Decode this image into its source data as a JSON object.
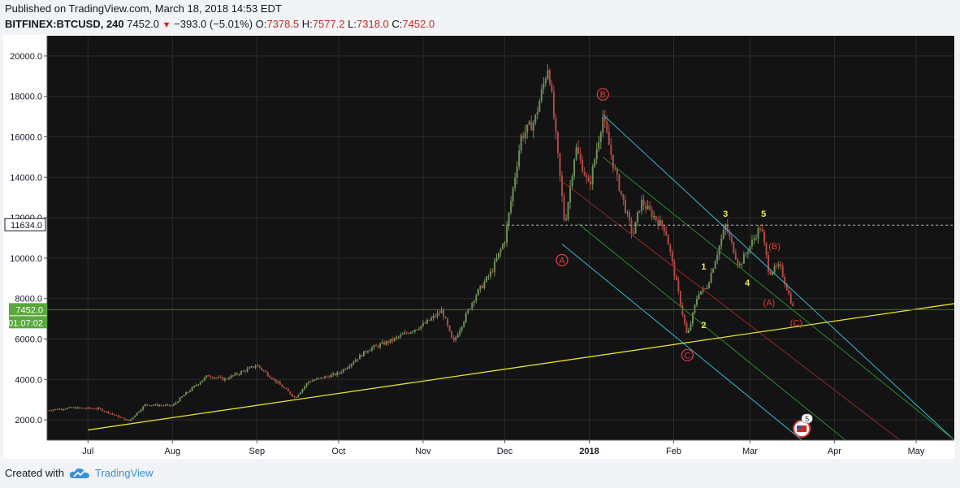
{
  "header": {
    "published": "Published on TradingView.com, March 18, 2018 14:53 EDT",
    "symbol": "BITFINEX:BTCUSD, 240",
    "last": "7452.0",
    "change": "−393.0 (−5.01%)",
    "o_label": "O:",
    "o": "7378.5",
    "h_label": "H:",
    "h": "7577.2",
    "l_label": "L:",
    "l": "7318.0",
    "c_label": "C:",
    "c": "7452.0"
  },
  "footer": {
    "created_with": "Created with",
    "brand": "TradingView"
  },
  "colors": {
    "background": "#131313",
    "grid": "#2b2b2b",
    "up": "#6f8f57",
    "down": "#b04a45",
    "trendline": "#e8e12a",
    "channel_cyan": "#35b9d8",
    "channel_green": "#2d8a2d",
    "channel_red": "#9a2626",
    "wave_label_red": "#e0413c",
    "wave_label_yellow": "#f4e94a",
    "price_label_green": "#5aa83c"
  },
  "chart_data": {
    "type": "candlestick",
    "xlabel": "",
    "ylabel": "",
    "x_ticks": [
      "Jul",
      "Aug",
      "Sep",
      "Oct",
      "Nov",
      "Dec",
      "2018",
      "Feb",
      "Mar",
      "Apr",
      "May"
    ],
    "y_ticks": [
      "2000.0",
      "4000.0",
      "6000.0",
      "8000.0",
      "10000.0",
      "12000.0",
      "14000.0",
      "16000.0",
      "18000.0",
      "20000.0"
    ],
    "ylim": [
      1000,
      21000
    ],
    "xlim": [
      "2017-06-16",
      "2018-05-15"
    ],
    "grid": true,
    "price_path": [
      [
        "2017-06-16",
        2480
      ],
      [
        "2017-06-25",
        2600
      ],
      [
        "2017-07-05",
        2550
      ],
      [
        "2017-07-16",
        1950
      ],
      [
        "2017-07-22",
        2750
      ],
      [
        "2017-08-01",
        2700
      ],
      [
        "2017-08-05",
        3200
      ],
      [
        "2017-08-14",
        4200
      ],
      [
        "2017-08-20",
        4000
      ],
      [
        "2017-09-01",
        4700
      ],
      [
        "2017-09-15",
        3100
      ],
      [
        "2017-09-20",
        3900
      ],
      [
        "2017-10-01",
        4300
      ],
      [
        "2017-10-12",
        5500
      ],
      [
        "2017-10-20",
        5900
      ],
      [
        "2017-11-01",
        6700
      ],
      [
        "2017-11-08",
        7400
      ],
      [
        "2017-11-12",
        5800
      ],
      [
        "2017-11-20",
        8100
      ],
      [
        "2017-11-26",
        9300
      ],
      [
        "2017-12-01",
        10900
      ],
      [
        "2017-12-07",
        16000
      ],
      [
        "2017-12-12",
        16800
      ],
      [
        "2017-12-17",
        19600
      ],
      [
        "2017-12-22",
        13000
      ],
      [
        "2017-12-23",
        11600
      ],
      [
        "2017-12-27",
        15500
      ],
      [
        "2018-01-01",
        13500
      ],
      [
        "2018-01-06",
        17000
      ],
      [
        "2018-01-10",
        14500
      ],
      [
        "2018-01-17",
        11100
      ],
      [
        "2018-01-20",
        12800
      ],
      [
        "2018-01-29",
        11400
      ],
      [
        "2018-02-06",
        6100
      ],
      [
        "2018-02-10",
        8300
      ],
      [
        "2018-02-13",
        8500
      ],
      [
        "2018-02-20",
        11600
      ],
      [
        "2018-02-25",
        9600
      ],
      [
        "2018-03-05",
        11600
      ],
      [
        "2018-03-08",
        9300
      ],
      [
        "2018-03-12",
        9600
      ],
      [
        "2018-03-17",
        7452
      ]
    ],
    "current_price": 7452.0,
    "price_tags": [
      {
        "label": "11634.0",
        "value": 11634.0,
        "style": "dashed"
      },
      {
        "label": "7452.0",
        "value": 7452.0,
        "style": "green"
      },
      {
        "label": "01:07:02",
        "value": 7452.0,
        "style": "green-timer"
      }
    ],
    "wave_labels": [
      {
        "text": "A",
        "date": "2017-12-22",
        "price": 9900,
        "style": "circle-red"
      },
      {
        "text": "B",
        "date": "2018-01-06",
        "price": 18100,
        "style": "circle-red"
      },
      {
        "text": "C",
        "date": "2018-02-06",
        "price": 5200,
        "style": "circle-red"
      },
      {
        "text": "1",
        "date": "2018-02-12",
        "price": 9600,
        "style": "yellow"
      },
      {
        "text": "2",
        "date": "2018-02-12",
        "price": 6700,
        "style": "yellow"
      },
      {
        "text": "3",
        "date": "2018-02-20",
        "price": 12200,
        "style": "yellow"
      },
      {
        "text": "4",
        "date": "2018-02-28",
        "price": 8800,
        "style": "yellow"
      },
      {
        "text": "5",
        "date": "2018-03-06",
        "price": 12200,
        "style": "yellow"
      },
      {
        "text": "(B)",
        "date": "2018-03-10",
        "price": 10600,
        "style": "red"
      },
      {
        "text": "(A)",
        "date": "2018-03-08",
        "price": 7800,
        "style": "red"
      },
      {
        "text": "(C)",
        "date": "2018-03-18",
        "price": 6800,
        "style": "red"
      }
    ],
    "trendline": [
      [
        "2017-07-01",
        1500
      ],
      [
        "2018-05-15",
        7750
      ]
    ],
    "channel_lines": [
      {
        "color": "cyan",
        "from": [
          "2018-01-06",
          17100
        ],
        "to": [
          "2018-05-15",
          1000
        ]
      },
      {
        "color": "cyan",
        "from": [
          "2017-12-22",
          10700
        ],
        "to": [
          "2018-03-20",
          1000
        ]
      },
      {
        "color": "red",
        "from": [
          "2017-12-22",
          13800
        ],
        "to": [
          "2018-04-25",
          1000
        ]
      },
      {
        "color": "green",
        "from": [
          "2018-01-06",
          15000
        ],
        "to": [
          "2018-05-15",
          1000
        ]
      },
      {
        "color": "green",
        "from": [
          "2017-12-28",
          11700
        ],
        "to": [
          "2018-04-05",
          1000
        ]
      }
    ],
    "events_badge": {
      "count": "5",
      "date": "2018-03-20"
    }
  }
}
